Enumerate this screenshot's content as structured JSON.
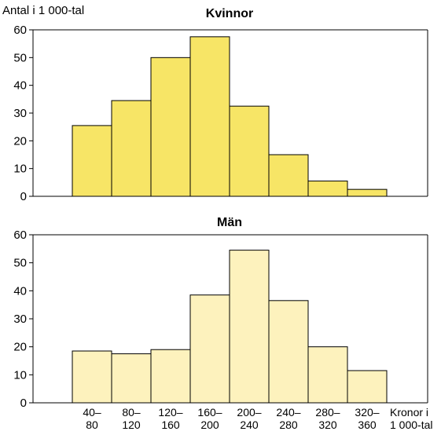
{
  "chart_data": [
    {
      "type": "bar",
      "title": "Kvinnor",
      "ylabel": "Antal i 1 000-tal",
      "xlabel": "",
      "ylim": [
        0,
        60
      ],
      "yticks": [
        "0",
        "10",
        "20",
        "30",
        "40",
        "50",
        "60"
      ],
      "grid": false,
      "bar_color": "#f7e566",
      "categories": [
        "40–80",
        "80–120",
        "120–160",
        "160–200",
        "200–240",
        "240–280",
        "280–320",
        "320–360"
      ],
      "values": [
        25.5,
        34.5,
        50,
        57.5,
        32.5,
        15,
        5.5,
        2.5
      ]
    },
    {
      "type": "bar",
      "title": "Män",
      "ylabel": "",
      "xlabel": "Kronor i 1 000-tal",
      "ylim": [
        0,
        60
      ],
      "yticks": [
        "0",
        "10",
        "20",
        "30",
        "40",
        "50",
        "60"
      ],
      "grid": false,
      "bar_color": "#fdf2bd",
      "categories": [
        "40–80",
        "80–120",
        "120–160",
        "160–200",
        "200–240",
        "240–280",
        "280–320",
        "320–360"
      ],
      "values": [
        18.5,
        17.5,
        19,
        38.5,
        54.5,
        36.5,
        20,
        11.5
      ]
    }
  ],
  "x_tick_labels": [
    {
      "top": "40–",
      "bottom": "80"
    },
    {
      "top": "80–",
      "bottom": "120"
    },
    {
      "top": "120–",
      "bottom": "160"
    },
    {
      "top": "160–",
      "bottom": "200"
    },
    {
      "top": "200–",
      "bottom": "240"
    },
    {
      "top": "240–",
      "bottom": "280"
    },
    {
      "top": "280–",
      "bottom": "320"
    },
    {
      "top": "320–",
      "bottom": "360"
    }
  ],
  "xlabel_lines": [
    "Kronor i",
    "1 000-tal"
  ]
}
